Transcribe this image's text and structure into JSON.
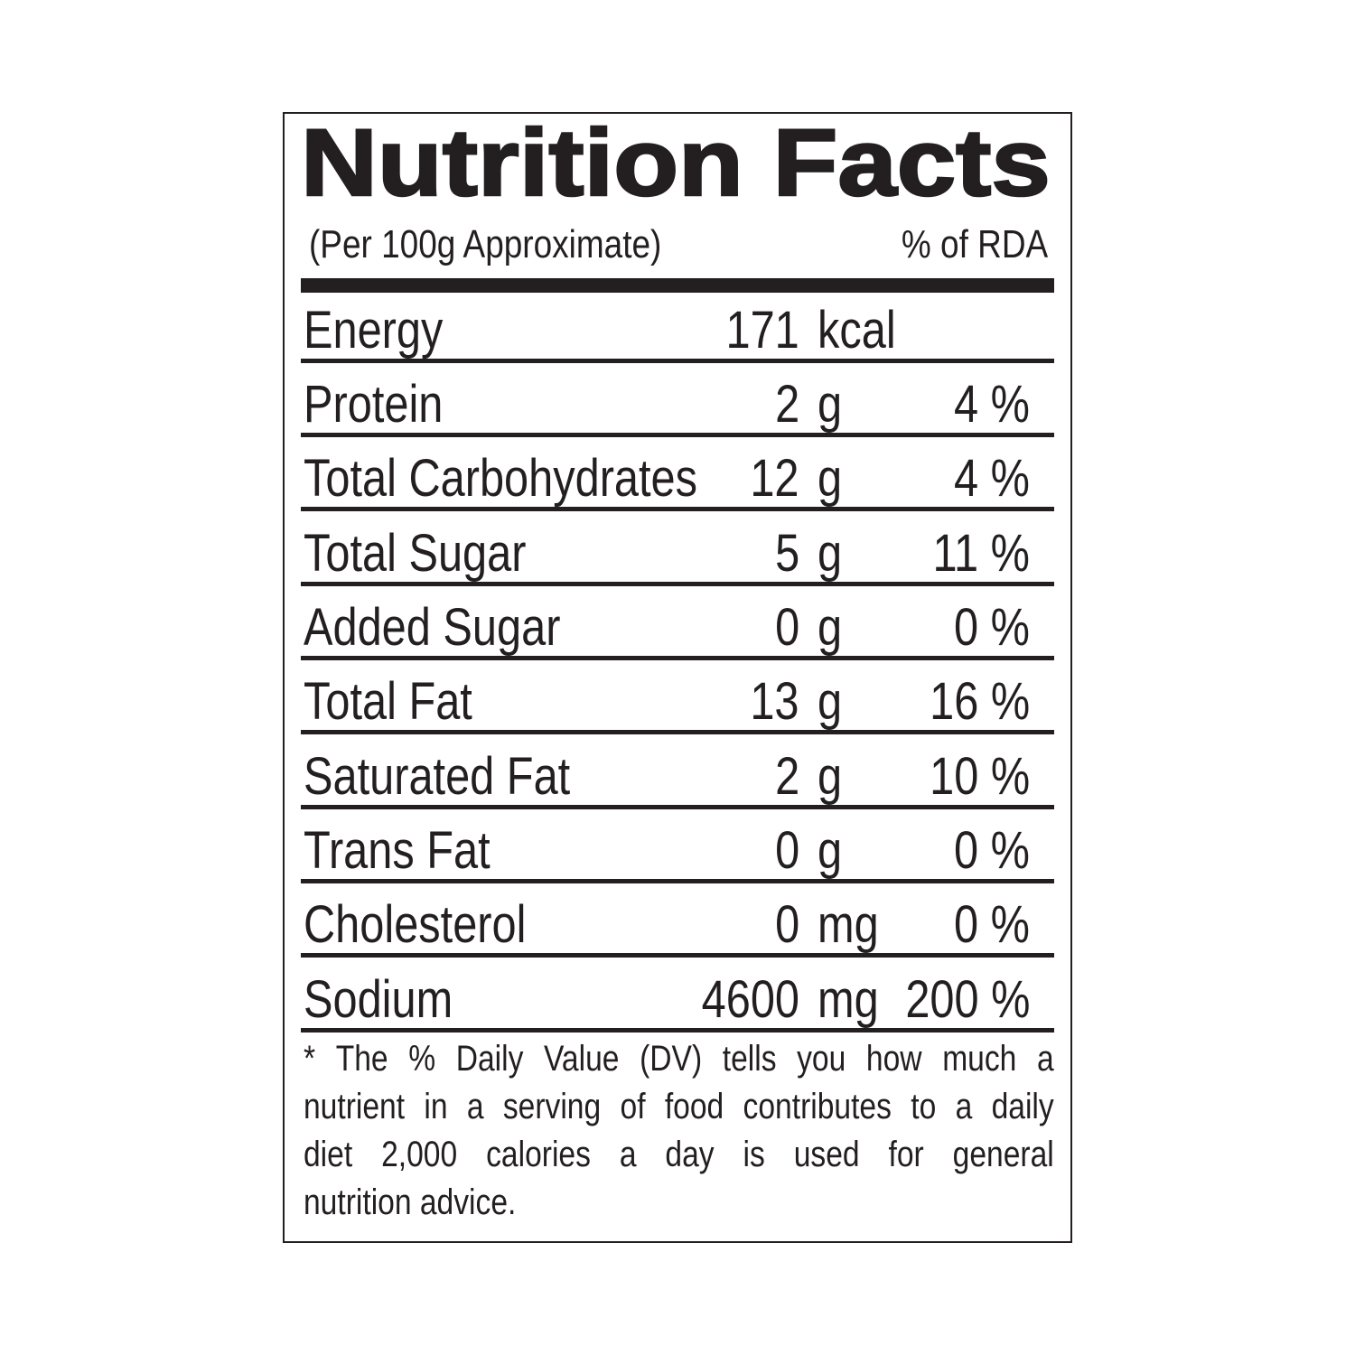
{
  "title": "Nutrition Facts",
  "subtitle_left": "(Per 100g Approximate)",
  "subtitle_right": "% of RDA",
  "rows": [
    {
      "label": "Energy",
      "amount": "171",
      "unit": "kcal",
      "rda": ""
    },
    {
      "label": "Protein",
      "amount": "2",
      "unit": "g",
      "rda": "4 %"
    },
    {
      "label": "Total Carbohydrates",
      "amount": "12",
      "unit": "g",
      "rda": "4 %"
    },
    {
      "label": "Total Sugar",
      "amount": "5",
      "unit": "g",
      "rda": "11 %"
    },
    {
      "label": "Added Sugar",
      "amount": "0",
      "unit": "g",
      "rda": "0 %"
    },
    {
      "label": "Total Fat",
      "amount": "13",
      "unit": "g",
      "rda": "16 %"
    },
    {
      "label": "Saturated Fat",
      "amount": "2",
      "unit": "g",
      "rda": "10 %"
    },
    {
      "label": "Trans Fat",
      "amount": "0",
      "unit": "g",
      "rda": "0 %"
    },
    {
      "label": "Cholesterol",
      "amount": "0",
      "unit": "mg",
      "rda": "0 %"
    },
    {
      "label": "Sodium",
      "amount": "4600",
      "unit": "mg",
      "rda": "200 %"
    }
  ],
  "footnote_lines": [
    "* The % Daily Value (DV) tells you how much a",
    "nutrient in a serving of food contributes to a daily",
    "diet 2,000 calories a day is used for general",
    "nutrition advice."
  ]
}
